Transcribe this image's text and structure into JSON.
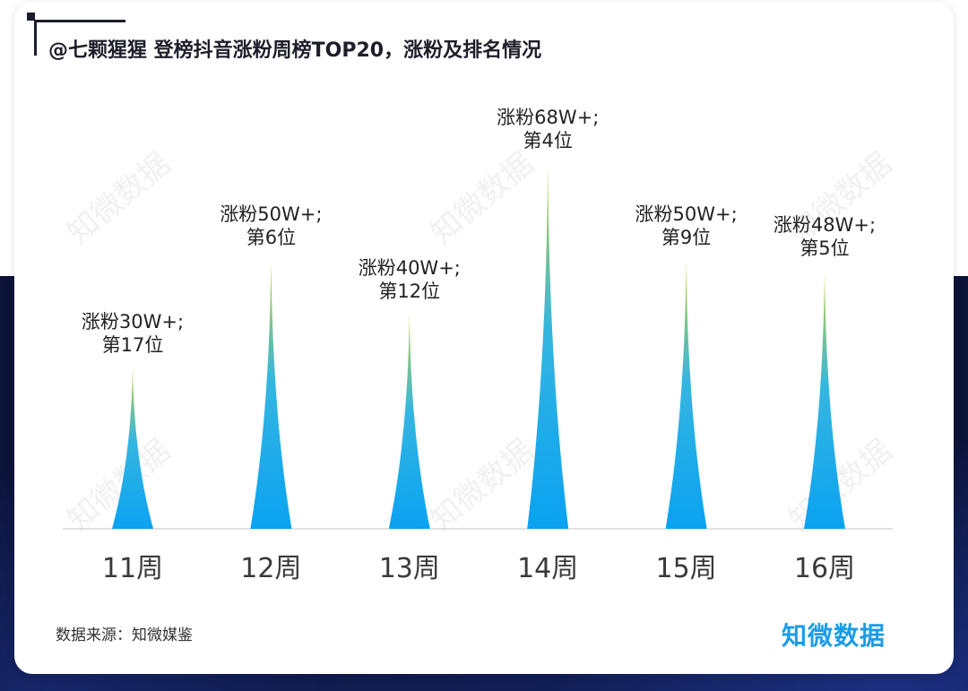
{
  "page": {
    "title": "@七颗猩猩 登榜抖音涨粉周榜TOP20，涨粉及排名情况",
    "source": "数据来源：知微媒鉴",
    "brand": "知微数据",
    "watermark": "知微数据"
  },
  "colors": {
    "peak_top": "#c8d23c",
    "peak_mid": "#35b6e0",
    "peak_bottom": "#0aa2f2",
    "navy": "#0c1338",
    "brand": "#1a9ce6"
  },
  "chart_data": {
    "type": "area",
    "title": "@七颗猩猩 登榜抖音涨粉周榜TOP20，涨粉及排名情况",
    "xlabel": "",
    "ylabel": "",
    "categories": [
      "11周",
      "12周",
      "13周",
      "14周",
      "15周",
      "16周"
    ],
    "values": [
      30,
      50,
      40,
      68,
      50,
      48
    ],
    "data_labels": [
      [
        "涨粉30W+;",
        "第17位"
      ],
      [
        "涨粉50W+;",
        "第6位"
      ],
      [
        "涨粉40W+;",
        "第12位"
      ],
      [
        "涨粉68W+;",
        "第4位"
      ],
      [
        "涨粉50W+;",
        "第9位"
      ],
      [
        "涨粉48W+;",
        "第5位"
      ]
    ],
    "ylim": [
      0,
      70
    ],
    "grid": false,
    "legend": "none"
  }
}
